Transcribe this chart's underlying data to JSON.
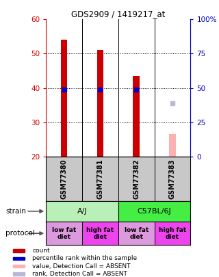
{
  "title": "GDS2909 / 1419217_at",
  "ylim_left": [
    20,
    60
  ],
  "ylim_right": [
    0,
    100
  ],
  "yticks_left": [
    20,
    30,
    40,
    50,
    60
  ],
  "yticks_right": [
    0,
    25,
    50,
    75,
    100
  ],
  "ytick_labels_right": [
    "0",
    "25",
    "50",
    "75",
    "100%"
  ],
  "samples": [
    "GSM77380",
    "GSM77381",
    "GSM77382",
    "GSM77383"
  ],
  "bar_values": [
    54.0,
    51.0,
    43.5,
    null
  ],
  "bar_colors": [
    "#cc0000",
    "#cc0000",
    "#cc0000",
    null
  ],
  "rank_values": [
    39.5,
    39.5,
    39.5,
    null
  ],
  "rank_colors": [
    "#0000cc",
    "#0000cc",
    "#0000cc",
    null
  ],
  "absent_bar_value": 26.5,
  "absent_bar_color": "#ffb0b0",
  "absent_rank_value": 35.5,
  "absent_rank_color": "#b8b8d8",
  "absent_sample_idx": 3,
  "strain_labels": [
    "A/J",
    "C57BL/6J"
  ],
  "strain_color": "#90ee90",
  "strain_color2": "#44dd44",
  "protocol_labels": [
    "low fat\ndiet",
    "high fat\ndiet",
    "low fat\ndiet",
    "high fat\ndiet"
  ],
  "protocol_colors": [
    "#dd88dd",
    "#ee55ee",
    "#dd88dd",
    "#ee55ee"
  ],
  "legend_items": [
    {
      "color": "#cc0000",
      "label": "count"
    },
    {
      "color": "#0000cc",
      "label": "percentile rank within the sample"
    },
    {
      "color": "#ffb0b0",
      "label": "value, Detection Call = ABSENT"
    },
    {
      "color": "#b8b8d8",
      "label": "rank, Detection Call = ABSENT"
    }
  ],
  "bar_width": 0.18,
  "background_color": "#ffffff",
  "left_tick_color": "#cc0000",
  "right_tick_color": "#0000bb",
  "sample_bg": "#c8c8c8"
}
